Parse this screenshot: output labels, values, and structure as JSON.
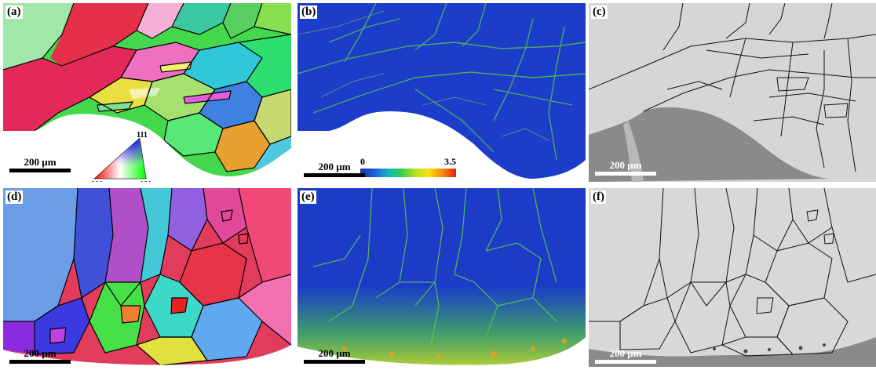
{
  "figure": {
    "panels": [
      {
        "id": "a",
        "label": "(a)",
        "type": "ebsd-ipf-map",
        "scale_bar": "200 µm"
      },
      {
        "id": "b",
        "label": "(b)",
        "type": "kam-map",
        "scale_bar": "200 µm"
      },
      {
        "id": "c",
        "label": "(c)",
        "type": "band-contrast-map",
        "scale_bar": "200 µm"
      },
      {
        "id": "d",
        "label": "(d)",
        "type": "ebsd-ipf-map",
        "scale_bar": "200 µm"
      },
      {
        "id": "e",
        "label": "(e)",
        "type": "kam-map",
        "scale_bar": "200 µm"
      },
      {
        "id": "f",
        "label": "(f)",
        "type": "band-contrast-map",
        "scale_bar": "200 µm"
      }
    ],
    "ipf_legend": {
      "top": "111",
      "left": "001",
      "right": "101"
    },
    "kam_colorbar": {
      "min": "0",
      "max": "3.5",
      "colors": [
        "#1530a8",
        "#14b4c8",
        "#30d050",
        "#f8e010",
        "#e81c0c"
      ]
    },
    "colors": {
      "ipf_red": "#e02050",
      "ipf_green": "#3cd83c",
      "ipf_blue": "#3a4ae0",
      "kam_blue": "#1c3cc8",
      "kam_green": "#5cd040",
      "bc_gray": "#d4d4d4"
    }
  }
}
